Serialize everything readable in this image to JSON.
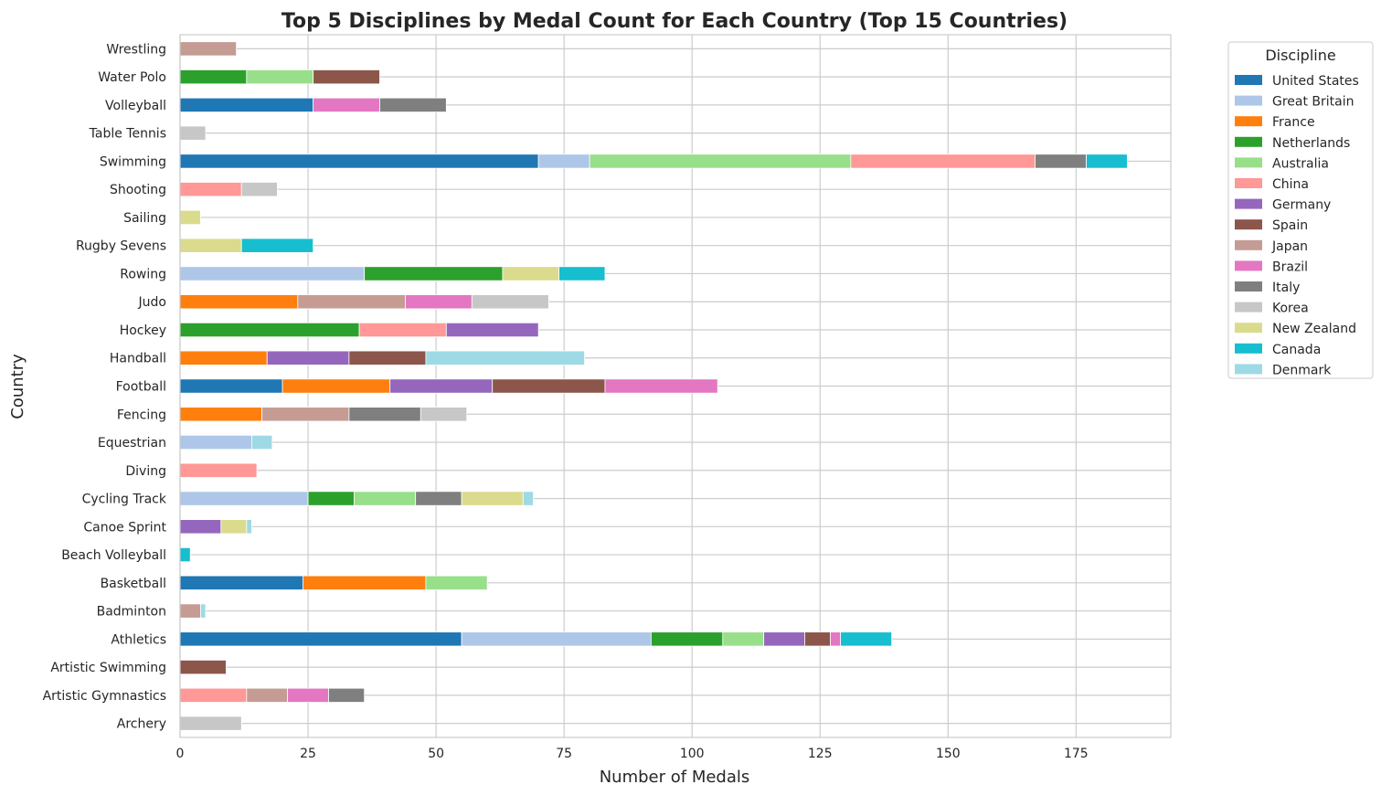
{
  "chart_data": {
    "type": "bar",
    "orientation": "horizontal",
    "stacked": true,
    "title": "Top 5 Disciplines by Medal Count for Each Country (Top 15 Countries)",
    "xlabel": "Number of Medals",
    "ylabel": "Country",
    "xlim": [
      0,
      193.5
    ],
    "xticks": [
      0,
      25,
      50,
      75,
      100,
      125,
      150,
      175
    ],
    "grid": true,
    "legend_title": "Discipline",
    "legend_position": "outside-right",
    "categories": [
      "Archery",
      "Artistic Gymnastics",
      "Artistic Swimming",
      "Athletics",
      "Badminton",
      "Basketball",
      "Beach Volleyball",
      "Canoe Sprint",
      "Cycling Track",
      "Diving",
      "Equestrian",
      "Fencing",
      "Football",
      "Handball",
      "Hockey",
      "Judo",
      "Rowing",
      "Rugby Sevens",
      "Sailing",
      "Shooting",
      "Swimming",
      "Table Tennis",
      "Volleyball",
      "Water Polo",
      "Wrestling"
    ],
    "series": [
      {
        "name": "United States",
        "color": "#1f77b4",
        "values": [
          0,
          0,
          0,
          55,
          0,
          24,
          0,
          0,
          0,
          0,
          0,
          0,
          20,
          0,
          0,
          0,
          0,
          0,
          0,
          0,
          70,
          0,
          26,
          0,
          0
        ]
      },
      {
        "name": "Great Britain",
        "color": "#aec7e8",
        "values": [
          0,
          0,
          0,
          37,
          0,
          0,
          0,
          0,
          25,
          0,
          14,
          0,
          0,
          0,
          0,
          0,
          36,
          0,
          0,
          0,
          10,
          0,
          0,
          0,
          0
        ]
      },
      {
        "name": "France",
        "color": "#ff7f0e",
        "values": [
          0,
          0,
          0,
          0,
          0,
          24,
          0,
          0,
          0,
          0,
          0,
          16,
          21,
          17,
          0,
          23,
          0,
          0,
          0,
          0,
          0,
          0,
          0,
          0,
          0
        ]
      },
      {
        "name": "Netherlands",
        "color": "#2ca02c",
        "values": [
          0,
          0,
          0,
          14,
          0,
          0,
          0,
          0,
          9,
          0,
          0,
          0,
          0,
          0,
          35,
          0,
          27,
          0,
          0,
          0,
          0,
          0,
          0,
          13,
          0
        ]
      },
      {
        "name": "Australia",
        "color": "#98df8a",
        "values": [
          0,
          0,
          0,
          8,
          0,
          12,
          0,
          0,
          12,
          0,
          0,
          0,
          0,
          0,
          0,
          0,
          0,
          0,
          0,
          0,
          51,
          0,
          0,
          13,
          0
        ]
      },
      {
        "name": "China",
        "color": "#ff9896",
        "values": [
          0,
          13,
          0,
          0,
          0,
          0,
          0,
          0,
          0,
          15,
          0,
          0,
          0,
          0,
          17,
          0,
          0,
          0,
          0,
          12,
          36,
          0,
          0,
          0,
          0
        ]
      },
      {
        "name": "Germany",
        "color": "#9467bd",
        "values": [
          0,
          0,
          0,
          8,
          0,
          0,
          0,
          8,
          0,
          0,
          0,
          0,
          20,
          16,
          18,
          0,
          0,
          0,
          0,
          0,
          0,
          0,
          0,
          0,
          0
        ]
      },
      {
        "name": "Spain",
        "color": "#8c564b",
        "values": [
          0,
          0,
          9,
          5,
          0,
          0,
          0,
          0,
          0,
          0,
          0,
          0,
          22,
          15,
          0,
          0,
          0,
          0,
          0,
          0,
          0,
          0,
          0,
          13,
          0
        ]
      },
      {
        "name": "Japan",
        "color": "#c49c94",
        "values": [
          0,
          8,
          0,
          0,
          4,
          0,
          0,
          0,
          0,
          0,
          0,
          17,
          0,
          0,
          0,
          21,
          0,
          0,
          0,
          0,
          0,
          0,
          0,
          0,
          11
        ]
      },
      {
        "name": "Brazil",
        "color": "#e377c2",
        "values": [
          0,
          8,
          0,
          2,
          0,
          0,
          0,
          0,
          0,
          0,
          0,
          0,
          22,
          0,
          0,
          13,
          0,
          0,
          0,
          0,
          0,
          0,
          13,
          0,
          0
        ]
      },
      {
        "name": "Italy",
        "color": "#7f7f7f",
        "values": [
          0,
          7,
          0,
          0,
          0,
          0,
          0,
          0,
          9,
          0,
          0,
          14,
          0,
          0,
          0,
          0,
          0,
          0,
          0,
          0,
          10,
          0,
          13,
          0,
          0
        ]
      },
      {
        "name": "Korea",
        "color": "#c7c7c7",
        "values": [
          12,
          0,
          0,
          0,
          0,
          0,
          0,
          0,
          0,
          0,
          0,
          9,
          0,
          0,
          0,
          15,
          0,
          0,
          0,
          7,
          0,
          5,
          0,
          0,
          0
        ]
      },
      {
        "name": "New Zealand",
        "color": "#dbdb8d",
        "values": [
          0,
          0,
          0,
          0,
          0,
          0,
          0,
          5,
          12,
          0,
          0,
          0,
          0,
          0,
          0,
          0,
          11,
          12,
          4,
          0,
          0,
          0,
          0,
          0,
          0
        ]
      },
      {
        "name": "Canada",
        "color": "#17becf",
        "values": [
          0,
          0,
          0,
          10,
          0,
          0,
          2,
          0,
          0,
          0,
          0,
          0,
          0,
          0,
          0,
          0,
          9,
          14,
          0,
          0,
          8,
          0,
          0,
          0,
          0
        ]
      },
      {
        "name": "Denmark",
        "color": "#9edae5",
        "values": [
          0,
          0,
          0,
          0,
          1,
          0,
          0,
          1,
          2,
          0,
          4,
          0,
          0,
          31,
          0,
          0,
          0,
          0,
          0,
          0,
          0,
          0,
          0,
          0,
          0
        ]
      }
    ]
  }
}
